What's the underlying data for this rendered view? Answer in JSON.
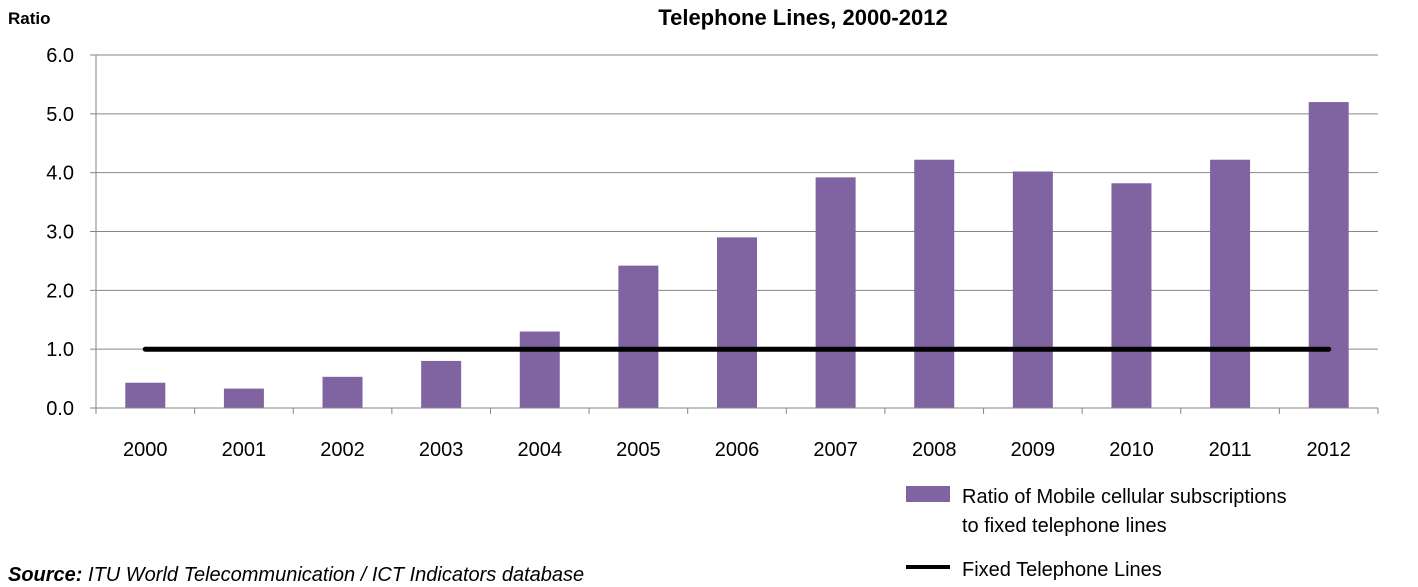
{
  "colors": {
    "bar": "#8064a2",
    "line": "#000000",
    "axis": "#868686",
    "grid": "#868686"
  },
  "source": {
    "label": "Source:",
    "text": " ITU World Telecommunication / ICT Indicators database"
  },
  "chart_data": {
    "type": "bar",
    "title": "Telephone Lines, 2000-2012",
    "ylabel": "Ratio",
    "xlabel": "",
    "ylim": [
      0,
      6
    ],
    "yticks": [
      "0.0",
      "1.0",
      "2.0",
      "3.0",
      "4.0",
      "5.0",
      "6.0"
    ],
    "grid": true,
    "legend_position": "bottom-right",
    "categories": [
      "2000",
      "2001",
      "2002",
      "2003",
      "2004",
      "2005",
      "2006",
      "2007",
      "2008",
      "2009",
      "2010",
      "2011",
      "2012"
    ],
    "series": [
      {
        "name": "Ratio of Mobile cellular subscriptions to fixed telephone lines",
        "legend_lines": [
          "Ratio of Mobile cellular subscriptions",
          "to fixed telephone lines"
        ],
        "type": "bar",
        "values": [
          0.43,
          0.33,
          0.53,
          0.8,
          1.3,
          2.42,
          2.9,
          3.92,
          4.22,
          4.02,
          3.82,
          4.22,
          5.2
        ]
      },
      {
        "name": "Fixed Telephone Lines",
        "legend_lines": [
          "Fixed Telephone Lines"
        ],
        "type": "line",
        "values": [
          1,
          1,
          1,
          1,
          1,
          1,
          1,
          1,
          1,
          1,
          1,
          1,
          1
        ]
      }
    ]
  }
}
